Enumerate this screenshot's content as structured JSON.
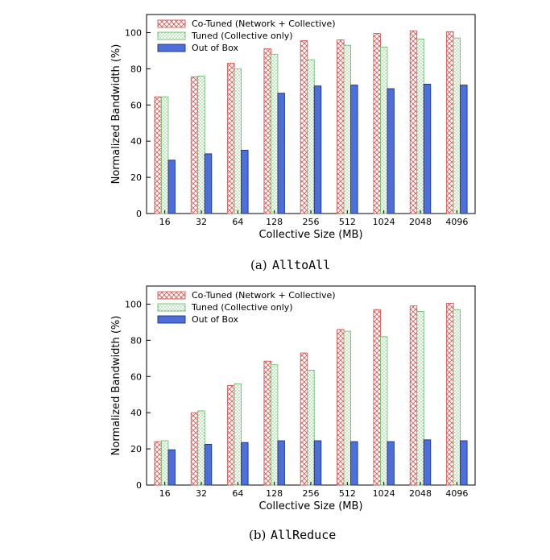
{
  "colors": {
    "cotuned_stroke": "#d9534f",
    "tuned_stroke": "#6cbf6c",
    "outofbox_fill": "#4d6fd9",
    "outofbox_stroke": "#1f2f7a"
  },
  "chart_data": [
    {
      "type": "bar",
      "caption_letter": "(a)",
      "caption_code": "AlltoAll",
      "xlabel": "Collective Size (MB)",
      "ylabel": "Normalized Bandwidth (%)",
      "ylim": [
        0,
        110
      ],
      "yticks": [
        0,
        20,
        40,
        60,
        80,
        100
      ],
      "legend_position": "top-left",
      "categories": [
        "16",
        "32",
        "64",
        "128",
        "256",
        "512",
        "1024",
        "2048",
        "4096"
      ],
      "series": [
        {
          "name": "Co-Tuned (Network + Collective)",
          "style": "crosshatch",
          "values": [
            64.5,
            75.5,
            83,
            91,
            95.5,
            96,
            99.5,
            101,
            100.5
          ]
        },
        {
          "name": "Tuned (Collective only)",
          "style": "dots",
          "values": [
            64.5,
            76,
            80,
            88,
            85,
            93,
            92,
            96.5,
            97
          ]
        },
        {
          "name": "Out of Box",
          "style": "solid",
          "values": [
            29.5,
            33,
            35,
            66.5,
            70.5,
            71,
            69,
            71.5,
            71
          ]
        }
      ]
    },
    {
      "type": "bar",
      "caption_letter": "(b)",
      "caption_code": "AllReduce",
      "xlabel": "Collective Size (MB)",
      "ylabel": "Normalized Bandwidth (%)",
      "ylim": [
        0,
        110
      ],
      "yticks": [
        0,
        20,
        40,
        60,
        80,
        100
      ],
      "legend_position": "top-left",
      "categories": [
        "16",
        "32",
        "64",
        "128",
        "256",
        "512",
        "1024",
        "2048",
        "4096"
      ],
      "series": [
        {
          "name": "Co-Tuned (Network + Collective)",
          "style": "crosshatch",
          "values": [
            24,
            40,
            55,
            68.5,
            73,
            86,
            97,
            99,
            100.5
          ]
        },
        {
          "name": "Tuned (Collective only)",
          "style": "dots",
          "values": [
            24.5,
            41,
            56,
            66.5,
            63.5,
            85,
            82,
            96,
            97
          ]
        },
        {
          "name": "Out of Box",
          "style": "solid",
          "values": [
            19.5,
            22.5,
            23.5,
            24.5,
            24.5,
            24,
            24,
            25,
            24.5
          ]
        }
      ]
    }
  ]
}
